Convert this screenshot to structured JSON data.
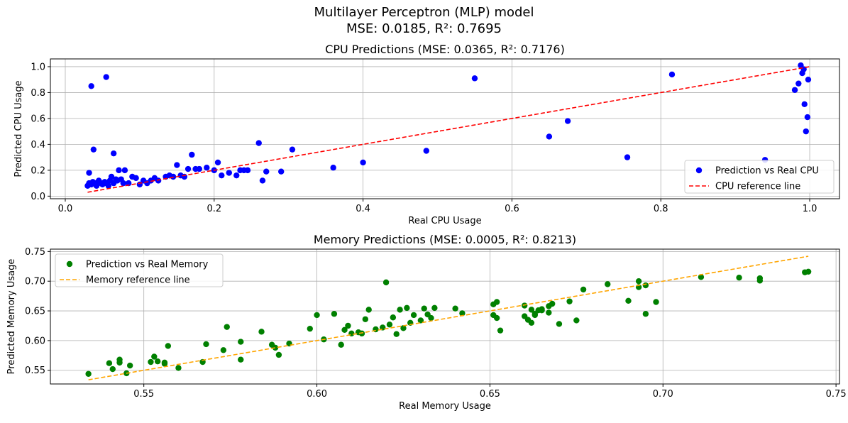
{
  "figure": {
    "suptitle_line1": "Multilayer Perceptron (MLP) model",
    "suptitle_line2": "MSE: 0.0185, R²: 0.7695"
  },
  "chart_data": [
    {
      "type": "scatter",
      "title": "CPU Predictions (MSE: 0.0365, R²: 0.7176)",
      "xlabel": "Real CPU Usage",
      "ylabel": "Predicted CPU Usage",
      "xlim": [
        -0.02,
        1.04
      ],
      "ylim": [
        -0.02,
        1.06
      ],
      "xticks": [
        0.0,
        0.2,
        0.4,
        0.6,
        0.8,
        1.0
      ],
      "xtick_labels": [
        "0.0",
        "0.2",
        "0.4",
        "0.6",
        "0.8",
        "1.0"
      ],
      "yticks": [
        0.0,
        0.2,
        0.4,
        0.6,
        0.8,
        1.0
      ],
      "ytick_labels": [
        "0.0",
        "0.2",
        "0.4",
        "0.6",
        "0.8",
        "1.0"
      ],
      "grid": true,
      "legend_position": "lower-right",
      "series": [
        {
          "name": "Prediction vs Real CPU",
          "kind": "scatter",
          "color": "#0000ff",
          "x": [
            0.03,
            0.032,
            0.035,
            0.037,
            0.04,
            0.042,
            0.045,
            0.048,
            0.05,
            0.053,
            0.055,
            0.058,
            0.06,
            0.062,
            0.065,
            0.068,
            0.07,
            0.072,
            0.075,
            0.078,
            0.08,
            0.085,
            0.09,
            0.095,
            0.1,
            0.105,
            0.11,
            0.115,
            0.12,
            0.125,
            0.135,
            0.14,
            0.145,
            0.15,
            0.155,
            0.16,
            0.165,
            0.17,
            0.175,
            0.18,
            0.19,
            0.2,
            0.205,
            0.21,
            0.22,
            0.23,
            0.235,
            0.24,
            0.245,
            0.26,
            0.265,
            0.27,
            0.29,
            0.305,
            0.36,
            0.4,
            0.485,
            0.55,
            0.65,
            0.675,
            0.755,
            0.815,
            0.94,
            0.98,
            0.985,
            0.988,
            0.99,
            0.992,
            0.993,
            0.995,
            0.997,
            0.998,
            0.035,
            0.038,
            0.055,
            0.065,
            0.032
          ],
          "y": [
            0.08,
            0.1,
            0.09,
            0.11,
            0.1,
            0.08,
            0.12,
            0.1,
            0.09,
            0.11,
            0.1,
            0.08,
            0.12,
            0.15,
            0.1,
            0.13,
            0.12,
            0.2,
            0.13,
            0.1,
            0.2,
            0.1,
            0.15,
            0.14,
            0.09,
            0.12,
            0.1,
            0.12,
            0.14,
            0.12,
            0.15,
            0.16,
            0.15,
            0.24,
            0.16,
            0.15,
            0.21,
            0.32,
            0.21,
            0.21,
            0.22,
            0.2,
            0.26,
            0.16,
            0.18,
            0.16,
            0.2,
            0.2,
            0.2,
            0.41,
            0.12,
            0.19,
            0.19,
            0.36,
            0.22,
            0.26,
            0.35,
            0.91,
            0.46,
            0.58,
            0.3,
            0.94,
            0.28,
            0.82,
            0.87,
            1.01,
            0.95,
            0.98,
            0.71,
            0.5,
            0.61,
            0.9,
            0.85,
            0.36,
            0.92,
            0.33,
            0.18
          ],
          "marker_size": 8
        },
        {
          "name": "CPU reference line",
          "kind": "dashed-line",
          "color": "#ff0000",
          "x": [
            0.03,
            1.0
          ],
          "y": [
            0.03,
            1.0
          ]
        }
      ]
    },
    {
      "type": "scatter",
      "title": "Memory Predictions (MSE: 0.0005, R²: 0.8213)",
      "xlabel": "Real Memory Usage",
      "ylabel": "Predicted Memory Usage",
      "xlim": [
        0.523,
        0.751
      ],
      "ylim": [
        0.527,
        0.754
      ],
      "xticks": [
        0.55,
        0.6,
        0.65,
        0.7,
        0.75
      ],
      "xtick_labels": [
        "0.55",
        "0.60",
        "0.65",
        "0.70",
        "0.75"
      ],
      "yticks": [
        0.55,
        0.6,
        0.65,
        0.7,
        0.75
      ],
      "ytick_labels": [
        "0.55",
        "0.60",
        "0.65",
        "0.70",
        "0.75"
      ],
      "grid": true,
      "legend_position": "upper-left",
      "series": [
        {
          "name": "Prediction vs Real Memory",
          "kind": "scatter",
          "color": "#008000",
          "x": [
            0.534,
            0.54,
            0.541,
            0.543,
            0.543,
            0.545,
            0.546,
            0.552,
            0.553,
            0.554,
            0.556,
            0.556,
            0.557,
            0.56,
            0.567,
            0.568,
            0.573,
            0.574,
            0.578,
            0.578,
            0.584,
            0.587,
            0.588,
            0.589,
            0.592,
            0.598,
            0.6,
            0.602,
            0.605,
            0.607,
            0.608,
            0.609,
            0.61,
            0.612,
            0.613,
            0.614,
            0.615,
            0.617,
            0.619,
            0.62,
            0.621,
            0.622,
            0.623,
            0.624,
            0.625,
            0.626,
            0.627,
            0.628,
            0.63,
            0.631,
            0.632,
            0.633,
            0.634,
            0.64,
            0.642,
            0.651,
            0.651,
            0.652,
            0.652,
            0.653,
            0.66,
            0.66,
            0.661,
            0.662,
            0.662,
            0.663,
            0.663,
            0.664,
            0.665,
            0.665,
            0.667,
            0.667,
            0.668,
            0.67,
            0.673,
            0.675,
            0.677,
            0.684,
            0.69,
            0.693,
            0.693,
            0.695,
            0.695,
            0.698,
            0.711,
            0.722,
            0.728,
            0.728,
            0.741,
            0.742
          ],
          "y": [
            0.544,
            0.562,
            0.552,
            0.568,
            0.563,
            0.545,
            0.558,
            0.564,
            0.573,
            0.565,
            0.561,
            0.563,
            0.591,
            0.554,
            0.564,
            0.594,
            0.584,
            0.623,
            0.598,
            0.568,
            0.615,
            0.593,
            0.588,
            0.576,
            0.595,
            0.62,
            0.643,
            0.602,
            0.645,
            0.593,
            0.618,
            0.625,
            0.612,
            0.614,
            0.612,
            0.636,
            0.652,
            0.619,
            0.622,
            0.698,
            0.627,
            0.639,
            0.611,
            0.652,
            0.621,
            0.655,
            0.63,
            0.643,
            0.634,
            0.654,
            0.644,
            0.638,
            0.655,
            0.654,
            0.646,
            0.661,
            0.643,
            0.665,
            0.638,
            0.617,
            0.659,
            0.641,
            0.635,
            0.652,
            0.63,
            0.645,
            0.643,
            0.651,
            0.653,
            0.651,
            0.647,
            0.658,
            0.662,
            0.628,
            0.666,
            0.634,
            0.686,
            0.695,
            0.667,
            0.69,
            0.7,
            0.645,
            0.693,
            0.665,
            0.707,
            0.706,
            0.701,
            0.705,
            0.715,
            0.716
          ],
          "marker_size": 8
        },
        {
          "name": "Memory reference line",
          "kind": "dashed-line",
          "color": "#ffa500",
          "x": [
            0.534,
            0.742
          ],
          "y": [
            0.534,
            0.742
          ]
        }
      ]
    }
  ]
}
